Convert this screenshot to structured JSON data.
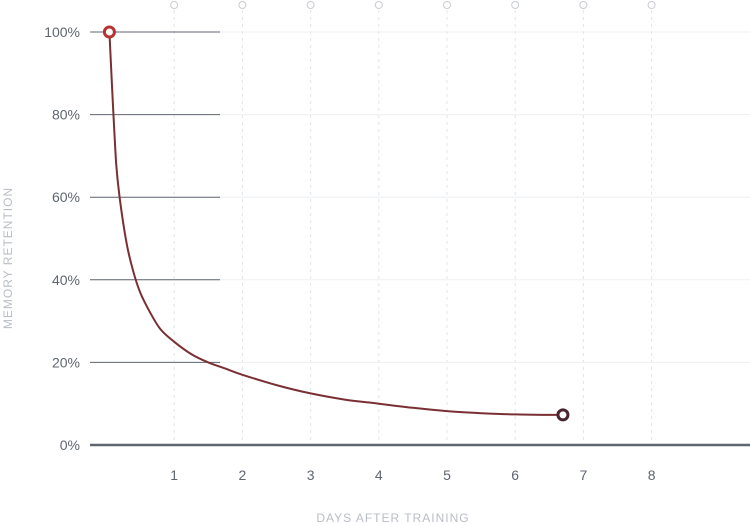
{
  "chart_data": {
    "type": "line",
    "xlabel": "DAYS AFTER TRAINING",
    "ylabel": "MEMORY RETENTION",
    "x_ticks": [
      {
        "value": 1,
        "label": "1"
      },
      {
        "value": 2,
        "label": "2"
      },
      {
        "value": 3,
        "label": "3"
      },
      {
        "value": 4,
        "label": "4"
      },
      {
        "value": 5,
        "label": "5"
      },
      {
        "value": 6,
        "label": "6"
      },
      {
        "value": 7,
        "label": "7"
      },
      {
        "value": 8,
        "label": "8"
      }
    ],
    "y_ticks": [
      {
        "value": 0,
        "label": "0%"
      },
      {
        "value": 20,
        "label": "20%"
      },
      {
        "value": 40,
        "label": "40%"
      },
      {
        "value": 60,
        "label": "60%"
      },
      {
        "value": 80,
        "label": "80%"
      },
      {
        "value": 100,
        "label": "100%"
      }
    ],
    "xlim": [
      0,
      10.6
    ],
    "ylim": [
      0,
      100
    ],
    "grid": true,
    "series": [
      {
        "x": [
          0.05,
          0.1,
          0.15,
          0.2,
          0.3,
          0.4,
          0.5,
          0.65,
          0.8,
          1.0,
          1.25,
          1.5,
          1.75,
          2.0,
          2.5,
          3.0,
          3.5,
          4.0,
          4.5,
          5.0,
          5.5,
          6.0,
          6.5,
          6.7
        ],
        "y": [
          100,
          83,
          68,
          60,
          49,
          42,
          37,
          32,
          28,
          25,
          22,
          20,
          18.5,
          17,
          14.5,
          12.5,
          11,
          10,
          9,
          8.2,
          7.7,
          7.4,
          7.3,
          7.3
        ],
        "color": "#7a2f33"
      }
    ],
    "start_marker_color": "#b83232",
    "end_marker_color": "#4a2530"
  }
}
